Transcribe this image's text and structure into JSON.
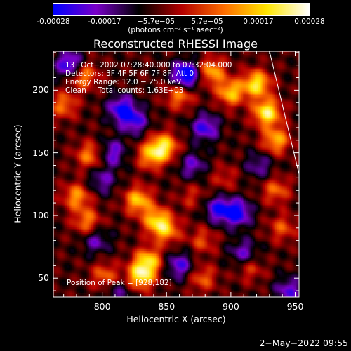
{
  "colorbar": {
    "tick_labels": [
      "-0.00028",
      "-0.00017",
      "−5.7e−05",
      "5.7e−05",
      "0.00017",
      "0.00028"
    ],
    "units": "(photons cm⁻² s⁻¹ asec⁻²)",
    "range": [
      -0.00028,
      0.00028
    ],
    "colors": [
      "#0000ff",
      "#7a00c8",
      "#000000",
      "#b40000",
      "#ff6e00",
      "#ffe600",
      "#ffffff"
    ]
  },
  "chart_data": {
    "type": "heatmap",
    "title": "Reconstructed RHESSI Image",
    "xlabel": "Heliocentric X (arcsec)",
    "ylabel": "Heliocentric Y (arcsec)",
    "xlim": [
      762,
      953
    ],
    "ylim": [
      35,
      231
    ],
    "x_ticks": [
      800,
      850,
      900,
      950
    ],
    "y_ticks": [
      50,
      100,
      150,
      200
    ],
    "annotations": [
      "13−Oct−2002 07:28:40.000 to 07:32:04.000",
      "Detectors: 3F 4F 5F 6F 7F 8F, Att 0",
      "Energy Range: 12.0 − 25.0 keV",
      "Clean     Total counts: 1.63E+03"
    ],
    "peak_label": "Position of Peak = [928,182]",
    "peak_position": [
      928,
      182
    ],
    "hotspots": [
      [
        928,
        182,
        0.00028
      ],
      [
        920,
        205,
        0.00026
      ],
      [
        900,
        198,
        0.00022
      ],
      [
        885,
        215,
        0.0002
      ],
      [
        935,
        160,
        0.0002
      ],
      [
        860,
        196,
        0.00017
      ],
      [
        848,
        155,
        0.00024
      ],
      [
        838,
        148,
        0.00019
      ],
      [
        828,
        112,
        0.00022
      ],
      [
        842,
        96,
        0.00021
      ],
      [
        850,
        88,
        0.00017
      ],
      [
        780,
        115,
        0.00018
      ],
      [
        788,
        95,
        0.00016
      ],
      [
        790,
        148,
        0.00016
      ],
      [
        770,
        188,
        0.00015
      ],
      [
        785,
        212,
        0.00019
      ],
      [
        802,
        52,
        0.00014
      ],
      [
        830,
        52,
        0.00026
      ],
      [
        836,
        64,
        0.00022
      ],
      [
        878,
        50,
        0.00013
      ],
      [
        878,
        80,
        0.00011
      ],
      [
        935,
        120,
        0.00014
      ],
      [
        940,
        90,
        0.00012
      ],
      [
        915,
        58,
        0.0001
      ],
      [
        895,
        130,
        8e-05
      ],
      [
        870,
        115,
        8e-05
      ]
    ],
    "coldspots": [
      [
        865,
        212,
        -0.00028
      ],
      [
        775,
        220,
        -0.00022
      ],
      [
        815,
        185,
        -0.0002
      ],
      [
        825,
        175,
        -0.00016
      ],
      [
        880,
        170,
        -0.00018
      ],
      [
        808,
        150,
        -0.00015
      ],
      [
        800,
        128,
        -0.00012
      ],
      [
        890,
        105,
        -0.00018
      ],
      [
        905,
        102,
        -0.00022
      ],
      [
        910,
        70,
        -0.00014
      ],
      [
        860,
        60,
        -0.00016
      ],
      [
        945,
        40,
        -0.00015
      ],
      [
        795,
        80,
        -0.00012
      ],
      [
        870,
        140,
        -0.00013
      ],
      [
        922,
        140,
        -0.00011
      ],
      [
        812,
        38,
        -0.0001
      ]
    ],
    "limb_line": [
      [
        930,
        231
      ],
      [
        953,
        133
      ]
    ]
  },
  "footer": {
    "timestamp": "2−May−2022 09:55"
  }
}
